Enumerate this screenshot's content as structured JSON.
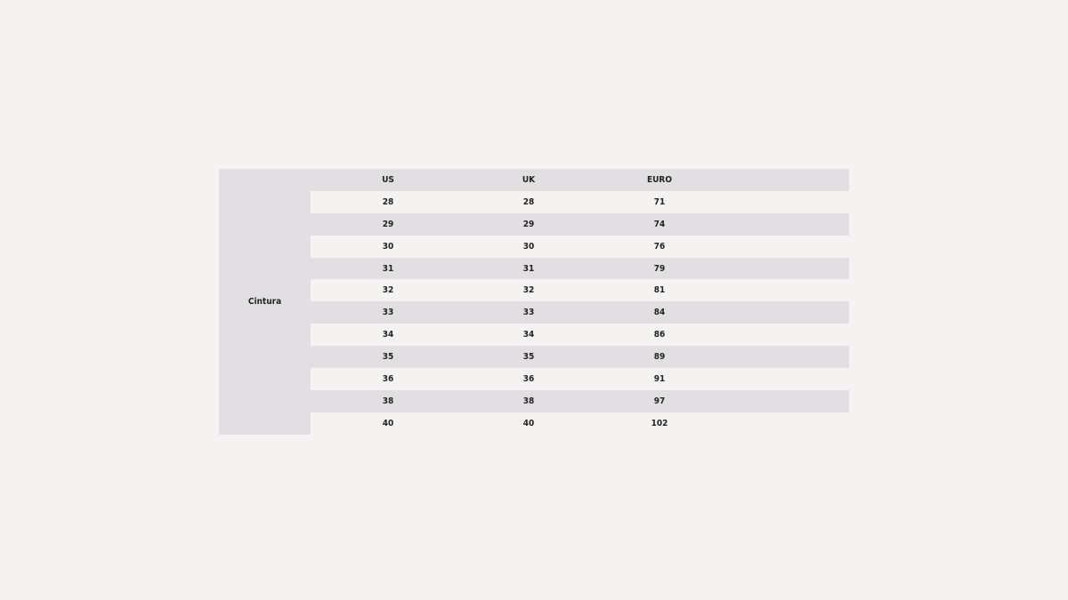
{
  "row_label": "Cintura",
  "headers": [
    "US",
    "UK",
    "EURO"
  ],
  "rows": [
    [
      "28",
      "28",
      "71"
    ],
    [
      "29",
      "29",
      "74"
    ],
    [
      "30",
      "30",
      "76"
    ],
    [
      "31",
      "31",
      "79"
    ],
    [
      "32",
      "32",
      "81"
    ],
    [
      "33",
      "33",
      "84"
    ],
    [
      "34",
      "34",
      "86"
    ],
    [
      "35",
      "35",
      "89"
    ],
    [
      "36",
      "36",
      "91"
    ],
    [
      "38",
      "38",
      "97"
    ],
    [
      "40",
      "40",
      "102"
    ]
  ],
  "colors": {
    "background": "#f4f3f1",
    "stripe": "#e1dfe2",
    "text": "#222222"
  }
}
